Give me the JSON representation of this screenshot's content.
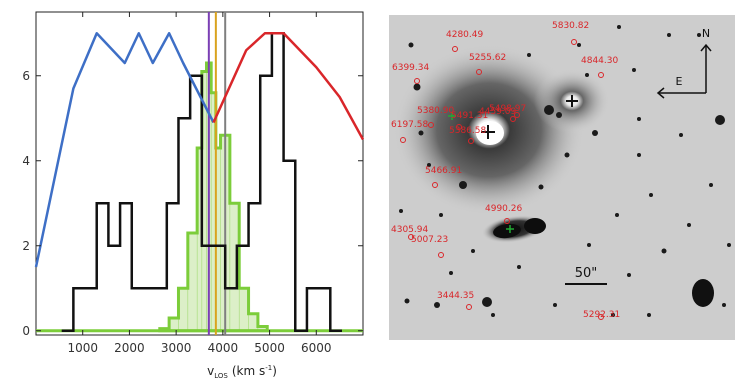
{
  "chart_data": [
    {
      "type": "line",
      "title": "",
      "xlabel": "v",
      "xlabel_sub": "LOS",
      "xlabel_units": "(km s",
      "xlabel_exp": "-1",
      "xlabel_close": ")",
      "ylabel": "",
      "xlim": [
        0,
        7000
      ],
      "ylim": [
        -0.1,
        7.5
      ],
      "xticks": [
        "1000",
        "2000",
        "3000",
        "4000",
        "5000",
        "6000"
      ],
      "xtick_values": [
        1000,
        2000,
        3000,
        4000,
        5000,
        6000
      ],
      "yticks": [
        "0",
        "2",
        "4",
        "6"
      ],
      "ytick_values": [
        0,
        2,
        4,
        6
      ],
      "histograms": [
        {
          "style": "black-step",
          "color": "#111111",
          "bins": [
            {
              "x0": 550,
              "x1": 800,
              "n": 0
            },
            {
              "x0": 800,
              "x1": 1050,
              "n": 1
            },
            {
              "x0": 1050,
              "x1": 1300,
              "n": 1
            },
            {
              "x0": 1300,
              "x1": 1550,
              "n": 3
            },
            {
              "x0": 1550,
              "x1": 1800,
              "n": 2
            },
            {
              "x0": 1800,
              "x1": 2050,
              "n": 3
            },
            {
              "x0": 2050,
              "x1": 2300,
              "n": 1
            },
            {
              "x0": 2300,
              "x1": 2550,
              "n": 1
            },
            {
              "x0": 2550,
              "x1": 2800,
              "n": 1
            },
            {
              "x0": 2800,
              "x1": 3050,
              "n": 3
            },
            {
              "x0": 3050,
              "x1": 3300,
              "n": 5
            },
            {
              "x0": 3300,
              "x1": 3550,
              "n": 6
            },
            {
              "x0": 3550,
              "x1": 3800,
              "n": 2
            },
            {
              "x0": 3800,
              "x1": 4050,
              "n": 2
            },
            {
              "x0": 4050,
              "x1": 4300,
              "n": 1
            },
            {
              "x0": 4300,
              "x1": 4550,
              "n": 2
            },
            {
              "x0": 4550,
              "x1": 4800,
              "n": 3
            },
            {
              "x0": 4800,
              "x1": 5050,
              "n": 6
            },
            {
              "x0": 5050,
              "x1": 5300,
              "n": 7
            },
            {
              "x0": 5300,
              "x1": 5550,
              "n": 4
            },
            {
              "x0": 5550,
              "x1": 5800,
              "n": 0
            },
            {
              "x0": 5800,
              "x1": 6050,
              "n": 1
            },
            {
              "x0": 6050,
              "x1": 6300,
              "n": 1
            },
            {
              "x0": 6300,
              "x1": 6550,
              "n": 0
            }
          ]
        },
        {
          "style": "green-filled-step",
          "color": "#7ccd3a",
          "fill": "#dcefc8",
          "bins": [
            {
              "x0": 2650,
              "x1": 2850,
              "n": 0.05
            },
            {
              "x0": 2850,
              "x1": 3050,
              "n": 0.3
            },
            {
              "x0": 3050,
              "x1": 3250,
              "n": 1.0
            },
            {
              "x0": 3250,
              "x1": 3450,
              "n": 2.3
            },
            {
              "x0": 3450,
              "x1": 3550,
              "n": 4.3
            },
            {
              "x0": 3550,
              "x1": 3650,
              "n": 6.1
            },
            {
              "x0": 3650,
              "x1": 3750,
              "n": 6.3
            },
            {
              "x0": 3750,
              "x1": 3850,
              "n": 5.6
            },
            {
              "x0": 3850,
              "x1": 3950,
              "n": 4.3
            },
            {
              "x0": 3950,
              "x1": 4150,
              "n": 4.6
            },
            {
              "x0": 4150,
              "x1": 4350,
              "n": 3.0
            },
            {
              "x0": 4350,
              "x1": 4550,
              "n": 1.0
            },
            {
              "x0": 4550,
              "x1": 4750,
              "n": 0.4
            },
            {
              "x0": 4750,
              "x1": 4950,
              "n": 0.1
            }
          ]
        }
      ],
      "series": [
        {
          "color": "#3e6fc6",
          "points": [
            [
              0,
              1.5
            ],
            [
              400,
              3.6
            ],
            [
              800,
              5.7
            ],
            [
              1300,
              7.0
            ],
            [
              1900,
              6.3
            ],
            [
              2200,
              7.0
            ],
            [
              2500,
              6.3
            ],
            [
              2850,
              7.0
            ],
            [
              3150,
              6.3
            ],
            [
              3800,
              4.9
            ]
          ]
        },
        {
          "color": "#d9262a",
          "points": [
            [
              3800,
              4.9
            ],
            [
              4500,
              6.6
            ],
            [
              4900,
              7.0
            ],
            [
              5300,
              7.0
            ],
            [
              6000,
              6.2
            ],
            [
              6500,
              5.5
            ],
            [
              7000,
              4.5
            ]
          ]
        }
      ],
      "vlines": [
        {
          "x": 3700,
          "color": "#7b3fb5"
        },
        {
          "x": 3850,
          "color": "#d9a31e"
        },
        {
          "x": 4050,
          "color": "#7f7f7f"
        }
      ]
    }
  ],
  "sky_image": {
    "compass": {
      "north": "N",
      "east": "E"
    },
    "scale_bar_label": "50\"",
    "galaxy_labels": [
      {
        "text": "5830.82"
      },
      {
        "text": "4280.49"
      },
      {
        "text": "4844.30"
      },
      {
        "text": "5255.62"
      },
      {
        "text": "6399.34"
      },
      {
        "text": "5491.31"
      },
      {
        "text": "4459.09"
      },
      {
        "text": "5498.97"
      },
      {
        "text": "5380.90"
      },
      {
        "text": "6197.58"
      },
      {
        "text": "5386.58"
      },
      {
        "text": "5466.91"
      },
      {
        "text": "4990.26"
      },
      {
        "text": "4305.94"
      },
      {
        "text": "5007.23"
      },
      {
        "text": "3444.35"
      },
      {
        "text": "5292.31"
      }
    ]
  }
}
